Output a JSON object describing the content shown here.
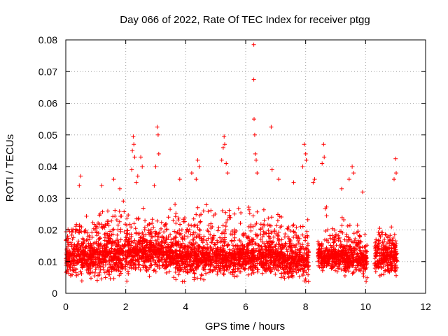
{
  "chart_data": {
    "type": "scatter",
    "title": "Day 066 of 2022, Rate Of TEC Index for receiver ptgg",
    "xlabel": "GPS time / hours",
    "ylabel": "ROTI / TECUs",
    "xlim": [
      0,
      12
    ],
    "ylim": [
      0,
      0.08
    ],
    "x_ticks": [
      0,
      2,
      4,
      6,
      8,
      10,
      12
    ],
    "y_ticks": [
      0,
      0.01,
      0.02,
      0.03,
      0.04,
      0.05,
      0.06,
      0.07,
      0.08
    ],
    "x_tick_labels": [
      "0",
      "2",
      "4",
      "6",
      "8",
      "10",
      "12"
    ],
    "y_tick_labels": [
      "0",
      "0.01",
      "0.02",
      "0.03",
      "0.04",
      "0.05",
      "0.06",
      "0.07",
      "0.08"
    ],
    "grid": true,
    "marker": "+",
    "marker_color": "#ff0000",
    "data_segments": [
      {
        "x_start": 0.0,
        "x_end": 0.95,
        "y_low": 0.003,
        "y_high": 0.03,
        "median": 0.012
      },
      {
        "x_start": 0.95,
        "x_end": 2.05,
        "y_low": 0.002,
        "y_high": 0.035,
        "median": 0.013
      },
      {
        "x_start": 2.05,
        "x_end": 3.6,
        "y_low": 0.005,
        "y_high": 0.032,
        "median": 0.013
      },
      {
        "x_start": 3.6,
        "x_end": 5.0,
        "y_low": 0.003,
        "y_high": 0.035,
        "median": 0.012
      },
      {
        "x_start": 5.0,
        "x_end": 5.95,
        "y_low": 0.004,
        "y_high": 0.034,
        "median": 0.012
      },
      {
        "x_start": 5.95,
        "x_end": 7.25,
        "y_low": 0.004,
        "y_high": 0.032,
        "median": 0.012
      },
      {
        "x_start": 7.25,
        "x_end": 8.1,
        "y_low": 0.002,
        "y_high": 0.032,
        "median": 0.011
      },
      {
        "x_start": 8.4,
        "x_end": 9.75,
        "y_low": 0.005,
        "y_high": 0.03,
        "median": 0.012
      },
      {
        "x_start": 9.75,
        "x_end": 10.05,
        "y_low": 0.003,
        "y_high": 0.025,
        "median": 0.011
      },
      {
        "x_start": 10.3,
        "x_end": 11.05,
        "y_low": 0.004,
        "y_high": 0.029,
        "median": 0.012
      }
    ],
    "outliers": [
      {
        "x": 6.27,
        "y": 0.0785
      },
      {
        "x": 6.27,
        "y": 0.0675
      },
      {
        "x": 6.28,
        "y": 0.055
      },
      {
        "x": 6.3,
        "y": 0.05
      },
      {
        "x": 6.32,
        "y": 0.044
      },
      {
        "x": 6.35,
        "y": 0.042
      },
      {
        "x": 6.38,
        "y": 0.038
      },
      {
        "x": 6.85,
        "y": 0.0525
      },
      {
        "x": 6.88,
        "y": 0.039
      },
      {
        "x": 3.05,
        "y": 0.0525
      },
      {
        "x": 3.08,
        "y": 0.05
      },
      {
        "x": 3.1,
        "y": 0.044
      },
      {
        "x": 3.0,
        "y": 0.04
      },
      {
        "x": 2.95,
        "y": 0.034
      },
      {
        "x": 2.25,
        "y": 0.0495
      },
      {
        "x": 2.27,
        "y": 0.047
      },
      {
        "x": 2.22,
        "y": 0.045
      },
      {
        "x": 2.3,
        "y": 0.043
      },
      {
        "x": 2.2,
        "y": 0.039
      },
      {
        "x": 2.4,
        "y": 0.037
      },
      {
        "x": 2.5,
        "y": 0.043
      },
      {
        "x": 2.55,
        "y": 0.04
      },
      {
        "x": 2.35,
        "y": 0.035
      },
      {
        "x": 5.28,
        "y": 0.0495
      },
      {
        "x": 5.3,
        "y": 0.047
      },
      {
        "x": 5.25,
        "y": 0.046
      },
      {
        "x": 5.2,
        "y": 0.042
      },
      {
        "x": 5.35,
        "y": 0.041
      },
      {
        "x": 5.4,
        "y": 0.038
      },
      {
        "x": 4.4,
        "y": 0.042
      },
      {
        "x": 4.45,
        "y": 0.04
      },
      {
        "x": 4.35,
        "y": 0.036
      },
      {
        "x": 4.2,
        "y": 0.038
      },
      {
        "x": 3.8,
        "y": 0.036
      },
      {
        "x": 7.95,
        "y": 0.047
      },
      {
        "x": 8.0,
        "y": 0.044
      },
      {
        "x": 8.02,
        "y": 0.042
      },
      {
        "x": 7.9,
        "y": 0.04
      },
      {
        "x": 8.6,
        "y": 0.047
      },
      {
        "x": 8.62,
        "y": 0.043
      },
      {
        "x": 8.55,
        "y": 0.041
      },
      {
        "x": 9.55,
        "y": 0.04
      },
      {
        "x": 9.6,
        "y": 0.038
      },
      {
        "x": 9.45,
        "y": 0.036
      },
      {
        "x": 11.0,
        "y": 0.0425
      },
      {
        "x": 11.02,
        "y": 0.038
      },
      {
        "x": 10.95,
        "y": 0.036
      },
      {
        "x": 0.5,
        "y": 0.037
      },
      {
        "x": 0.45,
        "y": 0.034
      },
      {
        "x": 1.2,
        "y": 0.034
      },
      {
        "x": 1.6,
        "y": 0.036
      },
      {
        "x": 1.8,
        "y": 0.033
      },
      {
        "x": 7.1,
        "y": 0.036
      },
      {
        "x": 7.6,
        "y": 0.035
      },
      {
        "x": 8.3,
        "y": 0.036
      },
      {
        "x": 8.25,
        "y": 0.035
      },
      {
        "x": 9.2,
        "y": 0.033
      },
      {
        "x": 9.9,
        "y": 0.032
      }
    ]
  }
}
